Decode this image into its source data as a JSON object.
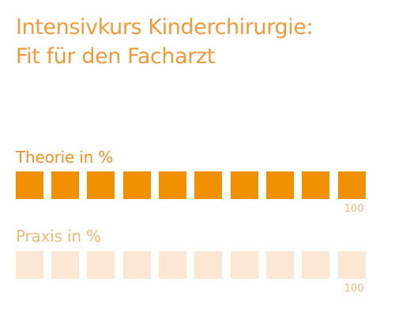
{
  "header": {
    "title_line_1": "Intensivkurs Kinderchirurgie:",
    "title_line_2": "Fit für den Facharzt"
  },
  "metrics": [
    {
      "label": "Theorie in %",
      "percent": 100,
      "max_label": "100",
      "filled_color": "#f19000",
      "empty_color": "#fbe7d3"
    },
    {
      "label": "Praxis in %",
      "percent": 0,
      "max_label": "100",
      "filled_color": "#f19000",
      "empty_color": "#fbe7d3"
    }
  ],
  "colors": {
    "title": "#f29a37",
    "theory_label": "#f19222",
    "practice_label": "#f4b77a",
    "scale_text": "#f4b77a"
  }
}
